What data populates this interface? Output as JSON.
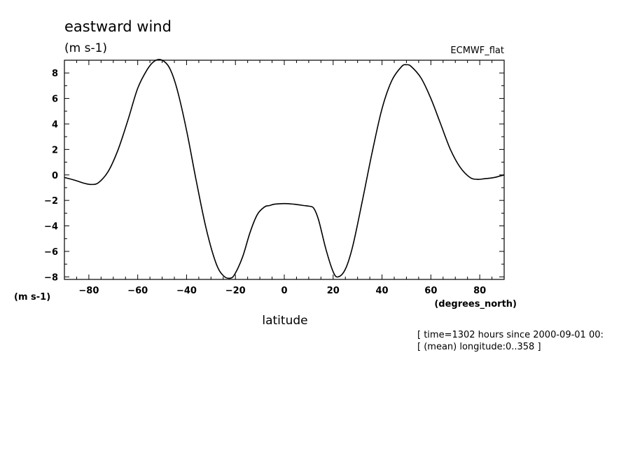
{
  "title": "eastward wind",
  "units": "(m s-1)",
  "dataset": "ECMWF_flat",
  "y_units_label": "(m s-1)",
  "x_units_label": "(degrees_north)",
  "xlabel": "latitude",
  "info_lines": [
    "[ time=1302 hours since 2000-09-01 00:",
    "[ (mean) longitude:0..358 ]"
  ],
  "colors": {
    "line": "#000000",
    "background": "#ffffff"
  },
  "chart_data": {
    "type": "line",
    "title": "eastward wind",
    "xlabel": "latitude",
    "ylabel": "(m s-1)",
    "xlim": [
      -90,
      90
    ],
    "ylim": [
      -8.2,
      9.0
    ],
    "grid": false,
    "x_ticks": [
      -80,
      -60,
      -40,
      -20,
      0,
      20,
      40,
      60,
      80
    ],
    "y_ticks": [
      -8,
      -6,
      -4,
      -2,
      0,
      2,
      4,
      6,
      8
    ],
    "x": [
      -90,
      -86,
      -82,
      -79,
      -76,
      -72,
      -68,
      -64,
      -60,
      -56,
      -53,
      -50,
      -47,
      -44,
      -40,
      -36,
      -32,
      -28,
      -25,
      -22,
      -20,
      -17,
      -14,
      -11,
      -8,
      -6,
      -4,
      0,
      4,
      8,
      10,
      12,
      14,
      17,
      20,
      22,
      25,
      28,
      32,
      36,
      40,
      44,
      48,
      50,
      52,
      56,
      60,
      64,
      68,
      72,
      76,
      79,
      82,
      86,
      88,
      90
    ],
    "series": [
      {
        "values": [
          -0.2,
          -0.4,
          -0.65,
          -0.75,
          -0.6,
          0.3,
          2.0,
          4.3,
          6.8,
          8.3,
          8.95,
          9.0,
          8.4,
          6.8,
          3.5,
          -0.5,
          -4.2,
          -6.9,
          -7.9,
          -8.1,
          -7.7,
          -6.4,
          -4.5,
          -3.1,
          -2.5,
          -2.4,
          -2.3,
          -2.25,
          -2.3,
          -2.4,
          -2.45,
          -2.6,
          -3.5,
          -5.8,
          -7.6,
          -8.0,
          -7.4,
          -5.6,
          -2.0,
          1.8,
          5.2,
          7.4,
          8.5,
          8.65,
          8.5,
          7.6,
          6.0,
          4.0,
          2.0,
          0.6,
          -0.2,
          -0.35,
          -0.3,
          -0.2,
          -0.1,
          0.0
        ]
      }
    ]
  }
}
